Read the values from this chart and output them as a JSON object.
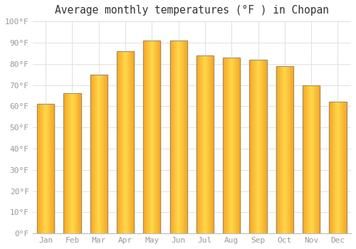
{
  "title": "Average monthly temperatures (°F ) in Chopan",
  "months": [
    "Jan",
    "Feb",
    "Mar",
    "Apr",
    "May",
    "Jun",
    "Jul",
    "Aug",
    "Sep",
    "Oct",
    "Nov",
    "Dec"
  ],
  "values": [
    61,
    66,
    75,
    86,
    91,
    91,
    84,
    83,
    82,
    79,
    70,
    62
  ],
  "bar_color_center": "#FFD84C",
  "bar_color_edge": "#F5A623",
  "bar_border_color": "#888888",
  "ylim": [
    0,
    100
  ],
  "ytick_step": 10,
  "background_color": "#FFFFFF",
  "grid_color": "#E0E0E0",
  "title_fontsize": 10.5,
  "tick_fontsize": 8,
  "tick_color": "#999999",
  "bar_width": 0.65
}
